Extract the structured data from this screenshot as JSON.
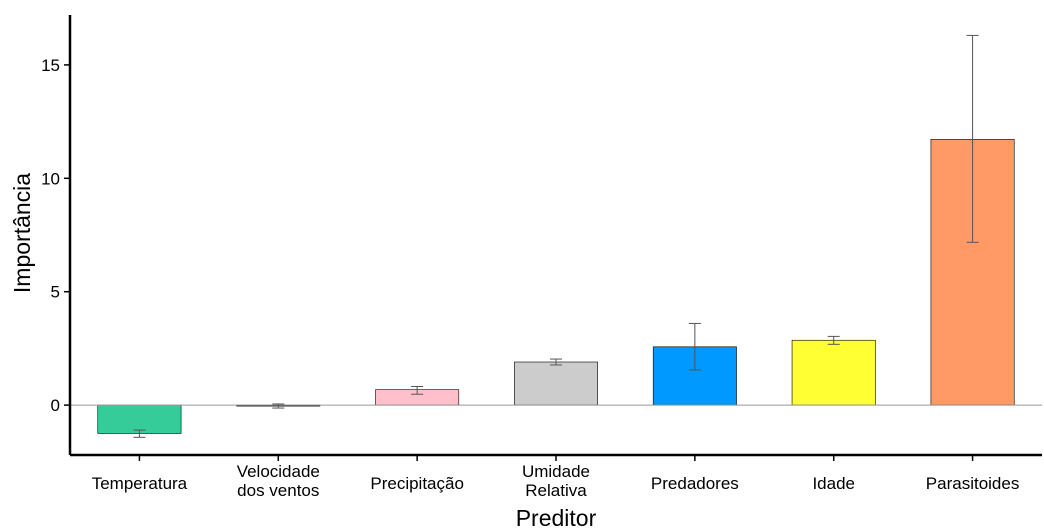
{
  "chart_data": {
    "type": "bar",
    "xlabel": "Preditor",
    "ylabel": "Importância",
    "ylim": [
      -2.2,
      17.2
    ],
    "yticks": [
      0,
      5,
      10,
      15
    ],
    "grid": false,
    "categories": [
      [
        "Temperatura"
      ],
      [
        "Velocidade",
        "dos ventos"
      ],
      [
        "Precipitação"
      ],
      [
        "Umidade",
        "Relativa"
      ],
      [
        "Predadores"
      ],
      [
        "Idade"
      ],
      [
        "Parasitoides"
      ]
    ],
    "values": [
      -1.25,
      -0.04,
      0.68,
      1.9,
      2.57,
      2.86,
      11.72
    ],
    "error_low": [
      -1.42,
      -0.13,
      0.48,
      1.77,
      1.55,
      2.68,
      7.18
    ],
    "error_high": [
      -1.1,
      0.05,
      0.82,
      2.03,
      3.6,
      3.03,
      16.3
    ],
    "colors": [
      "#36CC99",
      "#1A1A1A",
      "#FFC0CB",
      "#CCCCCC",
      "#0099FF",
      "#FFFF33",
      "#FF9966"
    ]
  }
}
